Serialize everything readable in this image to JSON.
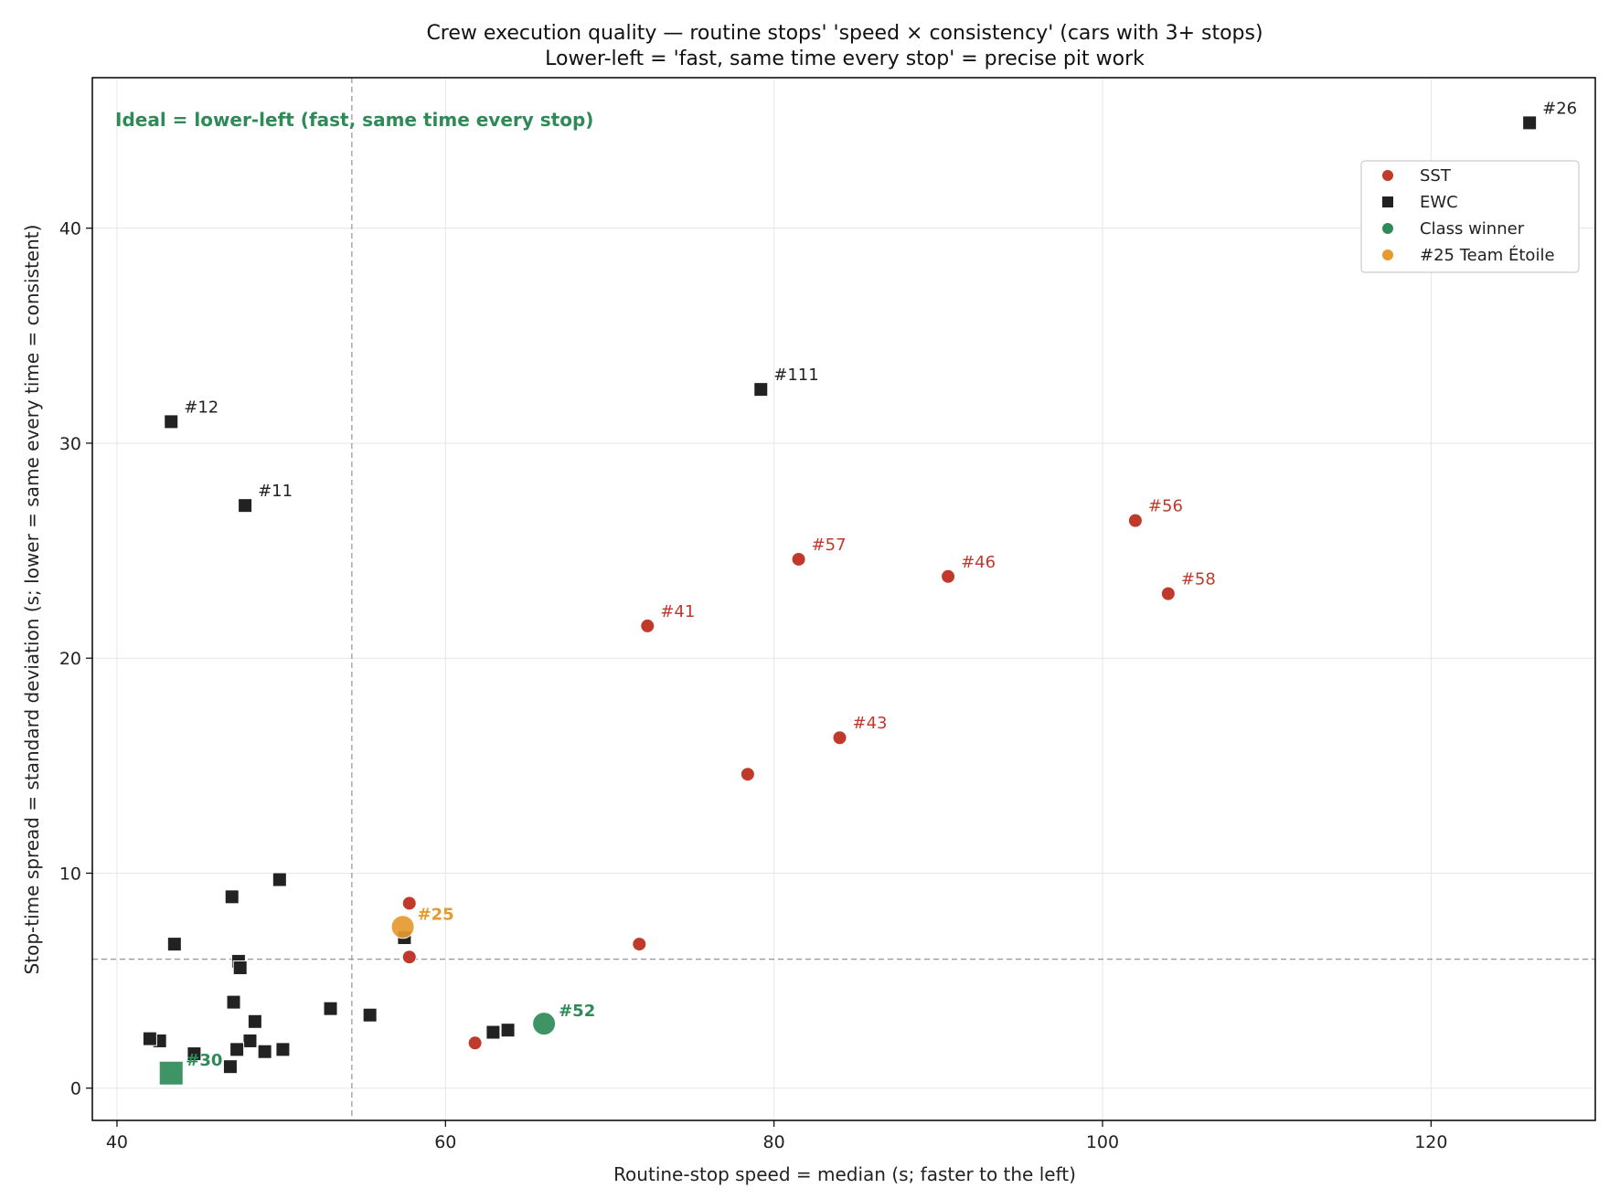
{
  "chart_data": {
    "type": "scatter",
    "title": "Crew execution quality — routine stops' 'speed × consistency' (cars with 3+ stops)",
    "subtitle": "Lower-left = 'fast, same time every stop' = precise pit work",
    "xlabel": "Routine-stop speed = median (s; faster to the left)",
    "ylabel": "Stop-time spread = standard deviation (s; lower = same every time = consistent)",
    "xlim": [
      38.5,
      130.0
    ],
    "ylim": [
      -1.5,
      47.0
    ],
    "xticks": [
      40,
      60,
      80,
      100,
      120
    ],
    "yticks": [
      0,
      10,
      20,
      30,
      40
    ],
    "grid": true,
    "legend_position": "upper-right",
    "reference_lines": {
      "x": 54.3,
      "y": 6.0
    },
    "annotation": "Ideal = lower-left (fast, same time every stop)",
    "colors": {
      "SST": "#c0392b",
      "EWC": "#222222",
      "Class winner": "#2e8b57",
      "#25 Team Étoile": "#e69a2e"
    },
    "legend": [
      {
        "label": "SST",
        "marker": "circle",
        "color": "#c0392b"
      },
      {
        "label": "EWC",
        "marker": "square",
        "color": "#222222"
      },
      {
        "label": "Class winner",
        "marker": "circle",
        "color": "#2e8b57"
      },
      {
        "label": "#25 Team Étoile",
        "marker": "circle",
        "color": "#e69a2e"
      }
    ],
    "series": [
      {
        "name": "SST",
        "marker": "circle",
        "color": "#c0392b",
        "points": [
          {
            "x": 72.3,
            "y": 21.5,
            "label": "#41"
          },
          {
            "x": 81.5,
            "y": 24.6,
            "label": "#57"
          },
          {
            "x": 90.6,
            "y": 23.8,
            "label": "#46"
          },
          {
            "x": 102.0,
            "y": 26.4,
            "label": "#56"
          },
          {
            "x": 104.0,
            "y": 23.0,
            "label": "#58"
          },
          {
            "x": 84.0,
            "y": 16.3,
            "label": "#43"
          },
          {
            "x": 78.4,
            "y": 14.6,
            "label": ""
          },
          {
            "x": 57.8,
            "y": 8.6,
            "label": ""
          },
          {
            "x": 57.8,
            "y": 6.1,
            "label": ""
          },
          {
            "x": 71.8,
            "y": 6.7,
            "label": ""
          },
          {
            "x": 61.8,
            "y": 2.1,
            "label": ""
          }
        ]
      },
      {
        "name": "EWC",
        "marker": "square",
        "color": "#222222",
        "points": [
          {
            "x": 126.0,
            "y": 44.9,
            "label": "#26"
          },
          {
            "x": 79.2,
            "y": 32.5,
            "label": "#111"
          },
          {
            "x": 43.3,
            "y": 31.0,
            "label": "#12"
          },
          {
            "x": 47.8,
            "y": 27.1,
            "label": "#11"
          },
          {
            "x": 49.9,
            "y": 9.7,
            "label": ""
          },
          {
            "x": 47.0,
            "y": 8.9,
            "label": ""
          },
          {
            "x": 43.5,
            "y": 6.7,
            "label": ""
          },
          {
            "x": 47.4,
            "y": 5.9,
            "label": ""
          },
          {
            "x": 47.5,
            "y": 5.6,
            "label": ""
          },
          {
            "x": 57.5,
            "y": 7.0,
            "label": ""
          },
          {
            "x": 47.1,
            "y": 4.0,
            "label": ""
          },
          {
            "x": 53.0,
            "y": 3.7,
            "label": ""
          },
          {
            "x": 55.4,
            "y": 3.4,
            "label": ""
          },
          {
            "x": 48.4,
            "y": 3.1,
            "label": ""
          },
          {
            "x": 42.6,
            "y": 2.2,
            "label": ""
          },
          {
            "x": 42.0,
            "y": 2.3,
            "label": ""
          },
          {
            "x": 48.1,
            "y": 2.2,
            "label": ""
          },
          {
            "x": 44.7,
            "y": 1.6,
            "label": ""
          },
          {
            "x": 47.3,
            "y": 1.8,
            "label": ""
          },
          {
            "x": 49.0,
            "y": 1.7,
            "label": ""
          },
          {
            "x": 50.1,
            "y": 1.8,
            "label": ""
          },
          {
            "x": 46.9,
            "y": 1.0,
            "label": ""
          },
          {
            "x": 62.9,
            "y": 2.6,
            "label": ""
          },
          {
            "x": 63.8,
            "y": 2.7,
            "label": ""
          }
        ]
      },
      {
        "name": "Class winner",
        "color": "#2e8b57",
        "points": [
          {
            "x": 66.0,
            "y": 3.0,
            "label": "#52",
            "marker": "circle"
          },
          {
            "x": 43.3,
            "y": 0.7,
            "label": "#30",
            "marker": "square"
          }
        ]
      },
      {
        "name": "#25 Team Étoile",
        "color": "#e69a2e",
        "points": [
          {
            "x": 57.4,
            "y": 7.5,
            "label": "#25",
            "marker": "circle"
          }
        ]
      }
    ]
  }
}
